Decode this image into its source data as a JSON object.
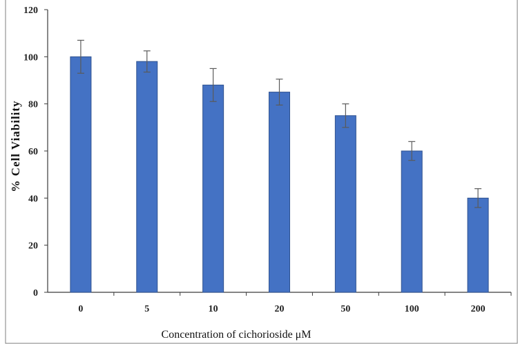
{
  "chart_data": {
    "type": "bar",
    "title": "",
    "xlabel": "Concentration  of cichorioside μM",
    "ylabel": "% Cell Viability",
    "categories": [
      "0",
      "5",
      "10",
      "20",
      "50",
      "100",
      "200"
    ],
    "values": [
      100,
      98,
      88,
      85,
      75,
      60,
      40
    ],
    "error": [
      7,
      4.5,
      7,
      5.5,
      5,
      4,
      4
    ],
    "ylim": [
      0,
      120
    ],
    "yticks": [
      0,
      20,
      40,
      60,
      80,
      100,
      120
    ],
    "ytick_labels": [
      "0",
      "20",
      "40",
      "60",
      "80",
      "100",
      "120"
    ],
    "grid": false,
    "legend": "none",
    "bar_color": "#4472c4"
  }
}
